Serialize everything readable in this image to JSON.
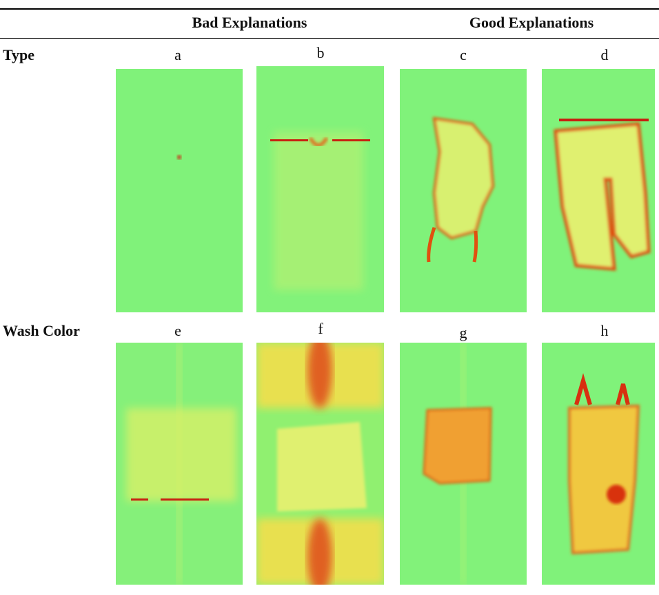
{
  "header": {
    "columns": [
      "Bad Explanations",
      "Good Explanations"
    ]
  },
  "rows": [
    {
      "label": "Type",
      "panels": [
        "a",
        "b",
        "c",
        "d"
      ]
    },
    {
      "label": "Wash Color",
      "panels": [
        "e",
        "f",
        "g",
        "h"
      ]
    }
  ]
}
